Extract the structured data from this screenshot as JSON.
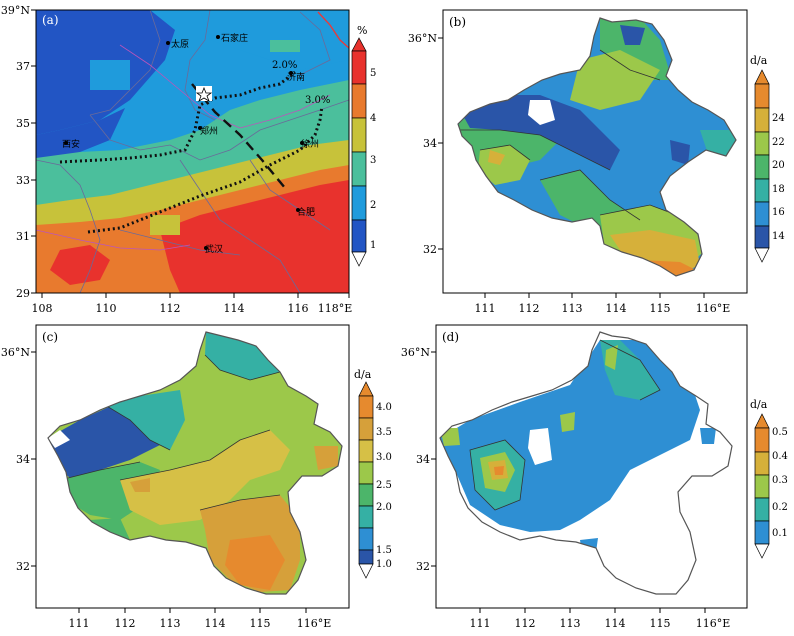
{
  "figure": {
    "panels": [
      {
        "id": "a",
        "label": "(a)",
        "lat_labels": [
          "39°N",
          "37",
          "35",
          "33",
          "31",
          "29"
        ],
        "lon_labels": [
          "108",
          "110",
          "112",
          "114",
          "116",
          "118°E"
        ],
        "colorbar": {
          "unit": "%",
          "ticks": [
            "1",
            "2",
            "3",
            "4",
            "5"
          ],
          "colors": [
            "#2255c4",
            "#1f9bdc",
            "#4bbf9c",
            "#c7c23a",
            "#e87a2e",
            "#e8322d"
          ]
        },
        "cities": [
          {
            "name": "太原"
          },
          {
            "name": "石家庄"
          },
          {
            "name": "济南"
          },
          {
            "name": "郑州"
          },
          {
            "name": "徐州"
          },
          {
            "name": "西安"
          },
          {
            "name": "合肥"
          },
          {
            "name": "武汉"
          }
        ],
        "contour_labels": [
          "2.0%",
          "3.0%"
        ],
        "marker": "star"
      },
      {
        "id": "b",
        "label": "(b)",
        "lat_labels": [
          "36°N",
          "34",
          "32"
        ],
        "lon_labels": [
          "111",
          "112",
          "113",
          "114",
          "115",
          "116°E"
        ],
        "colorbar": {
          "unit": "d/a",
          "ticks": [
            "14",
            "16",
            "18",
            "20",
            "22",
            "24"
          ],
          "colors": [
            "#2a55a8",
            "#2e8fd3",
            "#35b0a4",
            "#4cb56a",
            "#9cc84a",
            "#d6b03a",
            "#e68a2e"
          ]
        }
      },
      {
        "id": "c",
        "label": "(c)",
        "lat_labels": [
          "36°N",
          "34",
          "32"
        ],
        "lon_labels": [
          "111",
          "112",
          "113",
          "114",
          "115",
          "116°E"
        ],
        "colorbar": {
          "unit": "d/a",
          "ticks": [
            "1.0",
            "1.5",
            "2.0",
            "2.5",
            "3.0",
            "3.5",
            "4.0"
          ],
          "colors": [
            "#ffffff",
            "#2a55a8",
            "#2e8fd3",
            "#35b0a4",
            "#4cb56a",
            "#9cc84a",
            "#d6c046",
            "#d6a03a",
            "#e68a2e"
          ]
        }
      },
      {
        "id": "d",
        "label": "(d)",
        "lat_labels": [
          "36°N",
          "34",
          "32"
        ],
        "lon_labels": [
          "111",
          "112",
          "113",
          "114",
          "115",
          "116°E"
        ],
        "colorbar": {
          "unit": "d/a",
          "ticks": [
            "0.1",
            "0.2",
            "0.3",
            "0.4",
            "0.5"
          ],
          "colors": [
            "#ffffff",
            "#2e8fd3",
            "#35b0a4",
            "#9cc84a",
            "#d6b03a",
            "#e68a2e"
          ]
        }
      }
    ]
  }
}
